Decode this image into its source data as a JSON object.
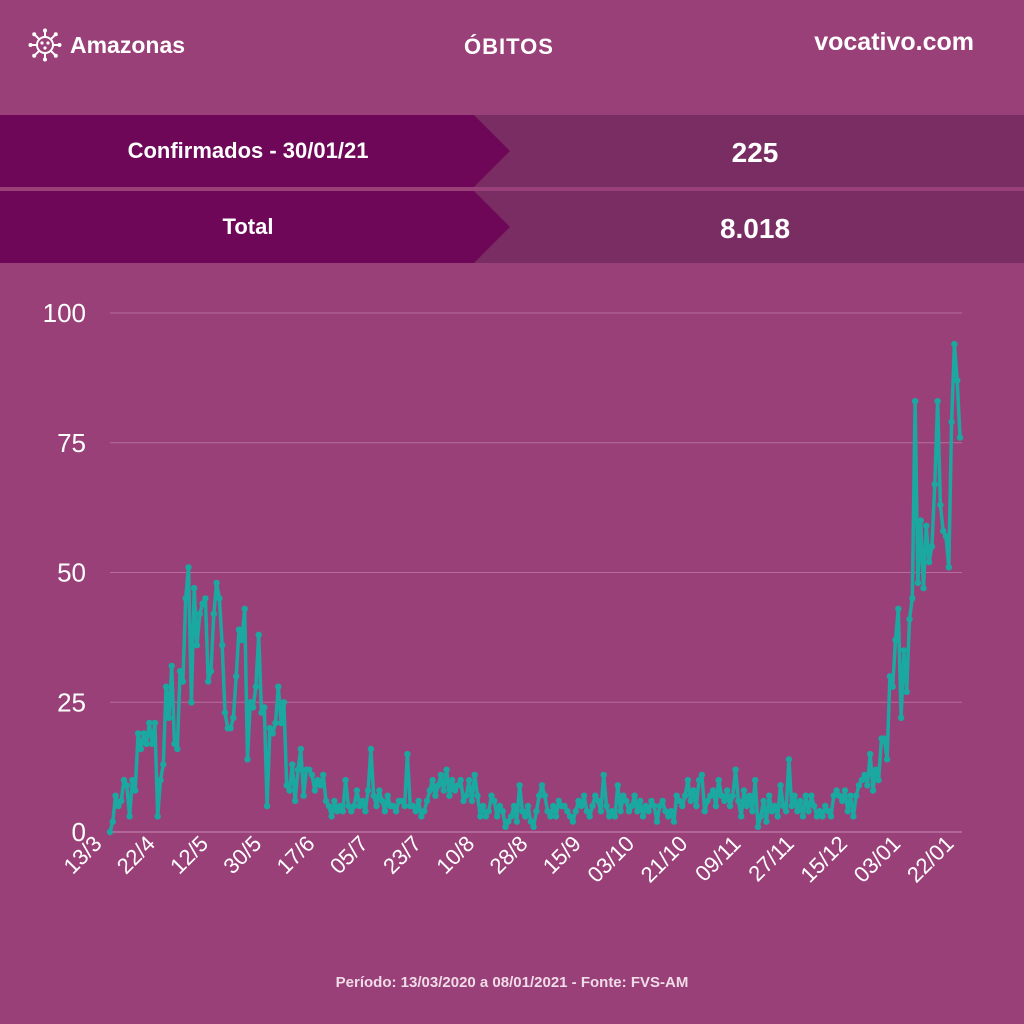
{
  "header": {
    "brand": "Amazonas",
    "brand_icon": "virus-icon",
    "title": "ÓBITOS",
    "site": "vocativo.com"
  },
  "stats": [
    {
      "label": "Confirmados - 30/01/21",
      "value": "225"
    },
    {
      "label": "Total",
      "value": "8.018"
    }
  ],
  "footer": "Período: 13/03/2020 a 08/01/2021 - Fonte: FVS-AM",
  "colors": {
    "background": "#9a4079",
    "line": "#1aa8a0",
    "label_band": "#6e0758",
    "value_band": "#7a2d62"
  },
  "chart_data": {
    "type": "line",
    "title": "ÓBITOS",
    "xlabel": "",
    "ylabel": "",
    "ylim": [
      0,
      100
    ],
    "yticks": [
      0,
      25,
      50,
      75,
      100
    ],
    "xticks": [
      "13/3",
      "22/4",
      "12/5",
      "30/5",
      "17/6",
      "05/7",
      "23/7",
      "10/8",
      "28/8",
      "15/9",
      "03/10",
      "21/10",
      "09/11",
      "27/11",
      "15/12",
      "03/01",
      "22/01"
    ],
    "grid": true,
    "series": [
      {
        "values": [
          0,
          2,
          7,
          5,
          6,
          10,
          9,
          3,
          10,
          8,
          19,
          16,
          19,
          17,
          21,
          17,
          21,
          3,
          10,
          13,
          28,
          22,
          32,
          17,
          16,
          31,
          29,
          45,
          51,
          25,
          47,
          36,
          42,
          44,
          45,
          29,
          31,
          42,
          48,
          45,
          36,
          23,
          20,
          20,
          22,
          30,
          39,
          37,
          43,
          14,
          25,
          24,
          28,
          38,
          23,
          24,
          5,
          20,
          19,
          21,
          28,
          21,
          25,
          9,
          8,
          13,
          6,
          12,
          16,
          7,
          12,
          12,
          11,
          8,
          10,
          9,
          11,
          6,
          5,
          3,
          6,
          4,
          5,
          4,
          10,
          5,
          4,
          5,
          8,
          5,
          6,
          4,
          8,
          16,
          7,
          5,
          8,
          6,
          4,
          7,
          5,
          5,
          4,
          6,
          6,
          5,
          15,
          5,
          5,
          4,
          6,
          3,
          4,
          6,
          8,
          10,
          7,
          9,
          11,
          8,
          12,
          7,
          10,
          8,
          9,
          10,
          6,
          7,
          10,
          6,
          11,
          7,
          3,
          5,
          3,
          4,
          7,
          6,
          3,
          5,
          4,
          1,
          2,
          3,
          5,
          2,
          9,
          4,
          3,
          5,
          2,
          1,
          4,
          7,
          9,
          7,
          4,
          3,
          5,
          3,
          6,
          5,
          5,
          4,
          3,
          2,
          4,
          6,
          5,
          7,
          4,
          3,
          5,
          7,
          6,
          4,
          11,
          5,
          3,
          4,
          3,
          9,
          4,
          7,
          6,
          4,
          5,
          7,
          4,
          6,
          3,
          5,
          4,
          6,
          5,
          2,
          5,
          6,
          4,
          3,
          4,
          2,
          7,
          6,
          5,
          7,
          10,
          6,
          8,
          5,
          10,
          11,
          4,
          6,
          7,
          8,
          5,
          10,
          7,
          6,
          8,
          5,
          7,
          12,
          6,
          3,
          8,
          5,
          7,
          4,
          10,
          1,
          3,
          6,
          2,
          7,
          4,
          5,
          3,
          9,
          5,
          4,
          14,
          5,
          7,
          4,
          6,
          3,
          7,
          4,
          7,
          5,
          3,
          4,
          3,
          5,
          4,
          3,
          7,
          8,
          7,
          6,
          8,
          4,
          7,
          3,
          7,
          9,
          10,
          11,
          9,
          15,
          8,
          12,
          10,
          18,
          18,
          14,
          30,
          28,
          37,
          43,
          22,
          35,
          27,
          41,
          45,
          83,
          48,
          60,
          47,
          59,
          52,
          55,
          67,
          83,
          63,
          58,
          57,
          51,
          79,
          94,
          87,
          76
        ]
      }
    ]
  }
}
